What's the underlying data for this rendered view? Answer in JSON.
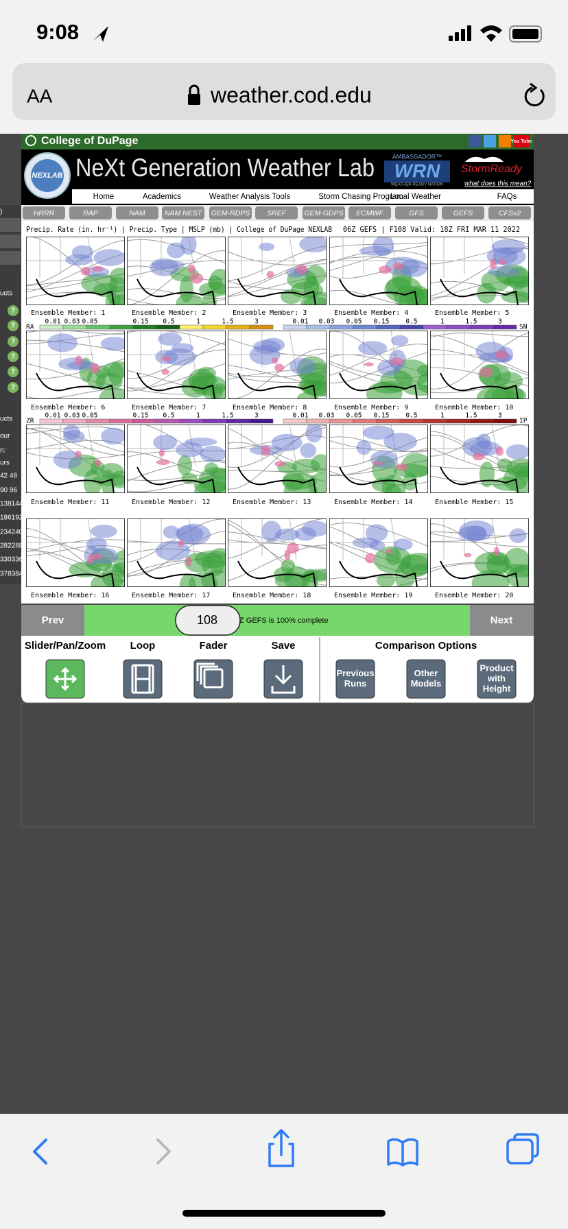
{
  "status_bar": {
    "time": "9:08"
  },
  "address_bar": {
    "text_size": "AA",
    "url": "weather.cod.edu"
  },
  "site_header": {
    "college": "College of DuPage",
    "youtube": "You Tube",
    "logo": "NEXLAB",
    "title": "NeXt Generation Weather Lab",
    "ambassador": "AMBASSADOR™",
    "wrn": "WRN",
    "wrn_tag": "WEATHER-READY NATION",
    "storm_ready": "StormReady",
    "storm_ready_link": "what does this mean?"
  },
  "nav": [
    "Home",
    "Academics",
    "Weather Analysis Tools",
    "Storm Chasing Program",
    "Local Weather",
    "FAQs"
  ],
  "model_tabs": [
    "HRRR",
    "RAP",
    "NAM",
    "NAM NEST",
    "GEM-RDPS",
    "SREF",
    "GEM-GDPS",
    "ECMWF",
    "GFS",
    "GEFS",
    "CFSv2"
  ],
  "sidebar": {
    "items": [
      ")",
      "ucts",
      "ucts",
      "our",
      "n:",
      "urs",
      "42  48",
      "90  96",
      "138144",
      "186192",
      "234240",
      "282288",
      "330336",
      "378384"
    ],
    "help": "?"
  },
  "product": {
    "fields": "Precip. Rate (in. hr⁻¹) | Precip. Type | MSLP (mb) | College of DuPage NEXLAB",
    "run": "06Z GEFS | F108 Valid: 18Z FRI MAR 11 2022"
  },
  "members": [
    "Ensemble Member: 1",
    "Ensemble Member: 2",
    "Ensemble Member: 3",
    "Ensemble Member: 4",
    "Ensemble Member: 5",
    "Ensemble Member: 6",
    "Ensemble Member: 7",
    "Ensemble Member: 8",
    "Ensemble Member: 9",
    "Ensemble Member: 10",
    "Ensemble Member: 11",
    "Ensemble Member: 12",
    "Ensemble Member: 13",
    "Ensemble Member: 14",
    "Ensemble Member: 15",
    "Ensemble Member: 16",
    "Ensemble Member: 17",
    "Ensemble Member: 18",
    "Ensemble Member: 19",
    "Ensemble Member: 20"
  ],
  "legends": [
    {
      "left_code": "RA",
      "right_code": "SN",
      "left_ticks": [
        "0.01",
        "0.03",
        "0.05",
        "0.15",
        "0.5",
        "1",
        "1.5",
        "3"
      ],
      "right_ticks": [
        "0.01",
        "0.03",
        "0.05",
        "0.15",
        "0.5",
        "1",
        "1.5",
        "3"
      ]
    },
    {
      "left_code": "ZR",
      "right_code": "IP",
      "left_ticks": [
        "0.01",
        "0.03",
        "0.05",
        "0.15",
        "0.5",
        "1",
        "1.5",
        "3"
      ],
      "right_ticks": [
        "0.01",
        "0.03",
        "0.05",
        "0.15",
        "0.5",
        "1",
        "1.5",
        "3"
      ]
    }
  ],
  "controls": {
    "prev": "Prev",
    "frame": "108",
    "status": "Z GEFS is 100% complete",
    "next": "Next"
  },
  "tools": [
    "Slider/Pan/Zoom",
    "Loop",
    "Fader",
    "Save"
  ],
  "comparison": {
    "title": "Comparison Options",
    "buttons": [
      [
        "Previous",
        "Runs"
      ],
      [
        "Other",
        "Models"
      ],
      [
        "Product",
        "with",
        "Height"
      ]
    ]
  }
}
